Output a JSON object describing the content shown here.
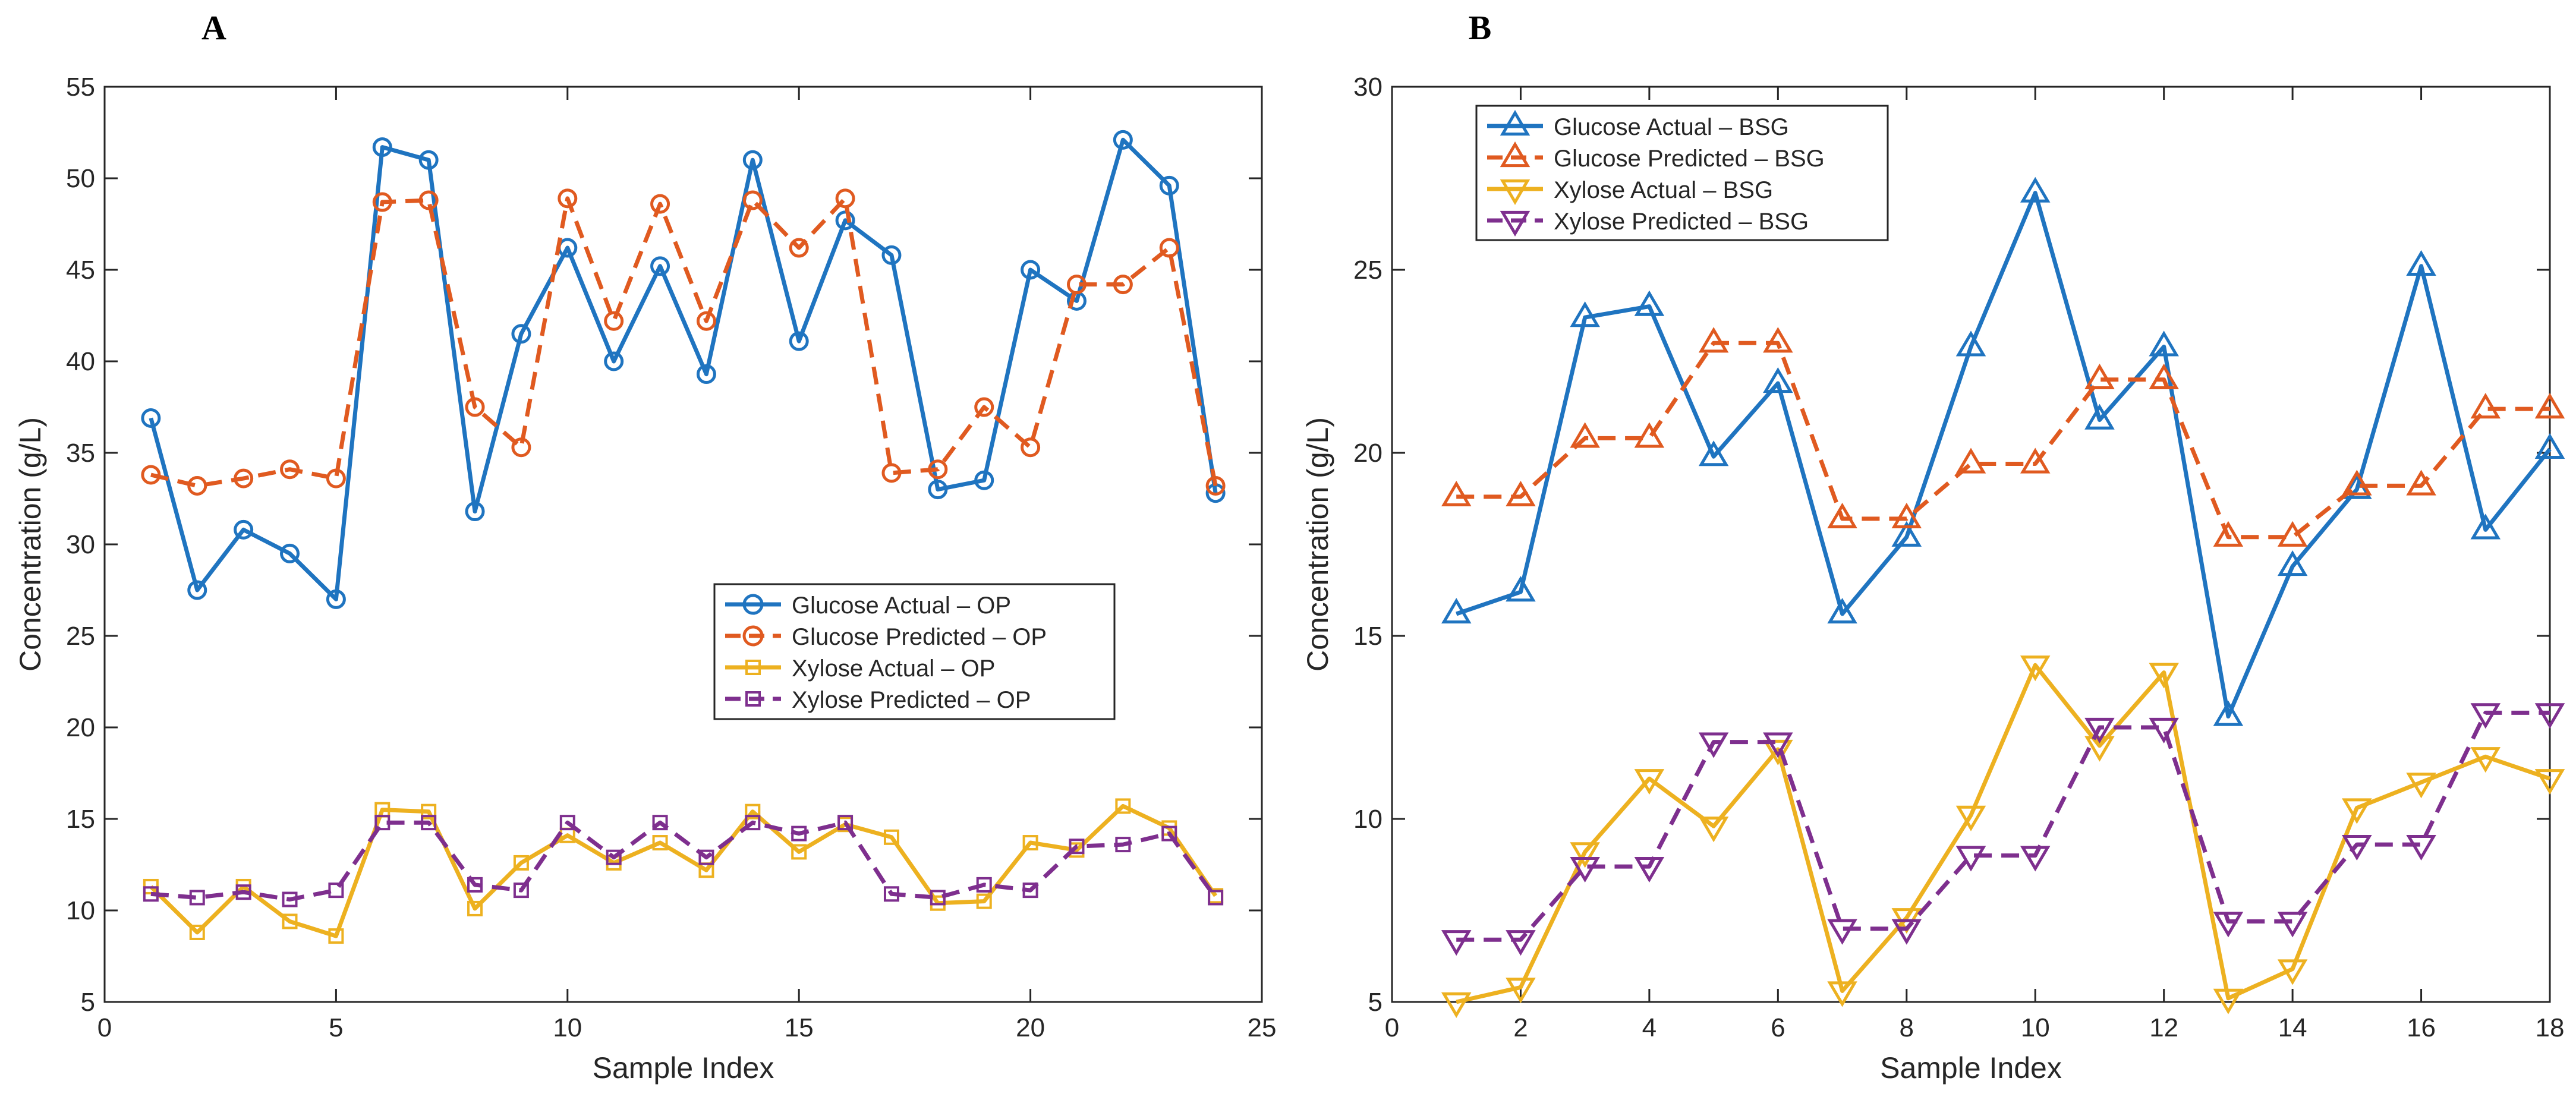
{
  "chart_data": [
    {
      "type": "line",
      "panel_label": "A",
      "title": "",
      "xlabel": "Sample Index",
      "ylabel": "Concentration (g/L)",
      "xlim": [
        0,
        25
      ],
      "ylim": [
        5,
        55
      ],
      "xticks": [
        "0",
        "5",
        "10",
        "15",
        "20",
        "25"
      ],
      "yticks": [
        "5",
        "10",
        "15",
        "20",
        "25",
        "30",
        "35",
        "40",
        "45",
        "50",
        "55"
      ],
      "grid": false,
      "legend_position": "center-right",
      "x": [
        1,
        2,
        3,
        4,
        5,
        6,
        7,
        8,
        9,
        10,
        11,
        12,
        13,
        14,
        15,
        16,
        17,
        18,
        19,
        20,
        21,
        22,
        23,
        24
      ],
      "series": [
        {
          "name": "Glucose Actual – OP",
          "color": "#1f74c0",
          "marker": "circle",
          "dash": "solid",
          "values": [
            36.9,
            27.5,
            30.8,
            29.5,
            27.0,
            51.7,
            51.0,
            31.8,
            41.5,
            46.2,
            40.0,
            45.2,
            39.3,
            51.0,
            41.1,
            47.7,
            45.8,
            33.0,
            33.5,
            45.0,
            43.3,
            52.1,
            49.6,
            32.8
          ]
        },
        {
          "name": "Glucose Predicted – OP",
          "color": "#e05a20",
          "marker": "circle",
          "dash": "dashed",
          "values": [
            33.8,
            33.2,
            33.6,
            34.1,
            33.6,
            48.7,
            48.8,
            37.5,
            35.3,
            48.9,
            42.2,
            48.6,
            42.2,
            48.8,
            46.2,
            48.9,
            33.9,
            34.1,
            37.5,
            35.3,
            44.2,
            44.2,
            46.2,
            33.2
          ]
        },
        {
          "name": "Xylose Actual – OP",
          "color": "#edb120",
          "marker": "square",
          "dash": "solid",
          "values": [
            11.3,
            8.8,
            11.3,
            9.4,
            8.6,
            15.5,
            15.4,
            10.1,
            12.6,
            14.1,
            12.6,
            13.7,
            12.2,
            15.4,
            13.2,
            14.7,
            14.0,
            10.4,
            10.5,
            13.7,
            13.3,
            15.7,
            14.5,
            10.8
          ]
        },
        {
          "name": "Xylose Predicted – OP",
          "color": "#7e2f8e",
          "marker": "square",
          "dash": "dashed",
          "values": [
            10.9,
            10.7,
            11.0,
            10.6,
            11.1,
            14.8,
            14.8,
            11.4,
            11.1,
            14.8,
            12.9,
            14.8,
            12.9,
            14.8,
            14.2,
            14.8,
            10.9,
            10.7,
            11.4,
            11.1,
            13.5,
            13.6,
            14.2,
            10.7
          ]
        }
      ]
    },
    {
      "type": "line",
      "panel_label": "B",
      "title": "",
      "xlabel": "Sample Index",
      "ylabel": "Concentration (g/L)",
      "xlim": [
        0,
        18
      ],
      "ylim": [
        5,
        30
      ],
      "xticks": [
        "0",
        "2",
        "4",
        "6",
        "8",
        "10",
        "12",
        "14",
        "16",
        "18"
      ],
      "yticks": [
        "5",
        "10",
        "15",
        "20",
        "25",
        "30"
      ],
      "grid": false,
      "legend_position": "top-left",
      "x": [
        1,
        2,
        3,
        4,
        5,
        6,
        7,
        8,
        9,
        10,
        11,
        12,
        13,
        14,
        15,
        16,
        17,
        18
      ],
      "series": [
        {
          "name": "Glucose Actual – BSG",
          "color": "#1f74c0",
          "marker": "triangle-up",
          "dash": "solid",
          "values": [
            15.6,
            16.2,
            23.7,
            24.0,
            19.9,
            21.9,
            15.6,
            17.7,
            22.9,
            27.1,
            20.9,
            22.9,
            12.8,
            16.9,
            19.0,
            25.1,
            17.9,
            20.1
          ]
        },
        {
          "name": "Glucose Predicted – BSG",
          "color": "#e05a20",
          "marker": "triangle-up",
          "dash": "dashed",
          "values": [
            18.8,
            18.8,
            20.4,
            20.4,
            23.0,
            23.0,
            18.2,
            18.2,
            19.7,
            19.7,
            22.0,
            22.0,
            17.7,
            17.7,
            19.1,
            19.1,
            21.2,
            21.2
          ]
        },
        {
          "name": "Xylose Actual – BSG",
          "color": "#edb120",
          "marker": "triangle-down",
          "dash": "solid",
          "values": [
            5.0,
            5.4,
            9.1,
            11.1,
            9.8,
            11.9,
            5.3,
            7.3,
            10.1,
            14.2,
            12.0,
            14.0,
            5.1,
            5.9,
            10.3,
            11.0,
            11.7,
            11.1
          ]
        },
        {
          "name": "Xylose Predicted – BSG",
          "color": "#7e2f8e",
          "marker": "triangle-down",
          "dash": "dashed",
          "values": [
            6.7,
            6.7,
            8.7,
            8.7,
            12.1,
            12.1,
            7.0,
            7.0,
            9.0,
            9.0,
            12.5,
            12.5,
            7.2,
            7.2,
            9.3,
            9.3,
            12.9,
            12.9
          ]
        }
      ]
    }
  ]
}
